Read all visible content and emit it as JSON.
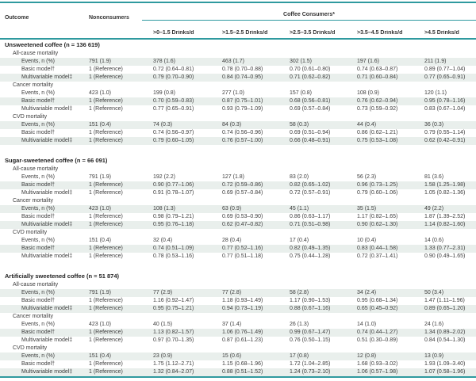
{
  "colors": {
    "accent_teal": "#2f9a9f",
    "row_stripe": "#e9efec"
  },
  "table": {
    "header": {
      "outcome": "Outcome",
      "nonconsumers": "Nonconsumers",
      "consumers_group": "Coffee Consumers*",
      "consumer_cols": [
        ">0–1.5 Drinks/d",
        ">1.5–2.5 Drinks/d",
        ">2.5–3.5 Drinks/d",
        ">3.5–4.5 Drinks/d",
        ">4.5 Drinks/d"
      ]
    },
    "sections": [
      {
        "title": "Unsweetened coffee (n = 136 619)",
        "groups": [
          {
            "name": "All-cause mortality",
            "rows": [
              {
                "label": "Events, n (%)",
                "cells": [
                  "791 (1.9)",
                  "378 (1.6)",
                  "463 (1.7)",
                  "302 (1.5)",
                  "197 (1.6)",
                  "211 (1.9)"
                ]
              },
              {
                "label": "Basic model†",
                "cells": [
                  "1 (Reference)",
                  "0.72 (0.64–0.81)",
                  "0.78 (0.70–0.88)",
                  "0.70 (0.61–0.80)",
                  "0.74 (0.63–0.87)",
                  "0.89 (0.77–1.04)"
                ]
              },
              {
                "label": "Multivariable model‡",
                "cells": [
                  "1 (Reference)",
                  "0.79 (0.70–0.90)",
                  "0.84 (0.74–0.95)",
                  "0.71 (0.62–0.82)",
                  "0.71 (0.60–0.84)",
                  "0.77 (0.65–0.91)"
                ]
              }
            ]
          },
          {
            "name": "Cancer mortality",
            "rows": [
              {
                "label": "Events, n (%)",
                "cells": [
                  "423 (1.0)",
                  "199 (0.8)",
                  "277 (1.0)",
                  "157 (0.8)",
                  "108 (0.9)",
                  "120 (1.1)"
                ]
              },
              {
                "label": "Basic model†",
                "cells": [
                  "1 (Reference)",
                  "0.70 (0.59–0.83)",
                  "0.87 (0.75–1.01)",
                  "0.68 (0.56–0.81)",
                  "0.76 (0.62–0.94)",
                  "0.95 (0.78–1.16)"
                ]
              },
              {
                "label": "Multivariable model‡",
                "cells": [
                  "1 (Reference)",
                  "0.77 (0.65–0.91)",
                  "0.93 (0.79–1.09)",
                  "0.69 (0.57–0.84)",
                  "0.73 (0.59–0.92)",
                  "0.83 (0.67–1.04)"
                ]
              }
            ]
          },
          {
            "name": "CVD mortality",
            "rows": [
              {
                "label": "Events, n (%)",
                "cells": [
                  "151 (0.4)",
                  "74 (0.3)",
                  "84 (0.3)",
                  "58 (0.3)",
                  "44 (0.4)",
                  "36 (0.3)"
                ]
              },
              {
                "label": "Basic model†",
                "cells": [
                  "1 (Reference)",
                  "0.74 (0.56–0.97)",
                  "0.74 (0.56–0.96)",
                  "0.69 (0.51–0.94)",
                  "0.86 (0.62–1.21)",
                  "0.79 (0.55–1.14)"
                ]
              },
              {
                "label": "Multivariable model‡",
                "cells": [
                  "1 (Reference)",
                  "0.79 (0.60–1.05)",
                  "0.76 (0.57–1.00)",
                  "0.66 (0.48–0.91)",
                  "0.75 (0.53–1.08)",
                  "0.62 (0.42–0.91)"
                ]
              }
            ]
          }
        ]
      },
      {
        "title": "Sugar-sweetened coffee (n = 66 091)",
        "groups": [
          {
            "name": "All-cause mortality",
            "rows": [
              {
                "label": "Events, n (%)",
                "cells": [
                  "791 (1.9)",
                  "192 (2.2)",
                  "127 (1.8)",
                  "83 (2.0)",
                  "56 (2.3)",
                  "81 (3.6)"
                ]
              },
              {
                "label": "Basic model†",
                "cells": [
                  "1 (Reference)",
                  "0.90 (0.77–1.06)",
                  "0.72 (0.59–0.86)",
                  "0.82 (0.65–1.02)",
                  "0.96 (0.73–1.25)",
                  "1.58 (1.25–1.98)"
                ]
              },
              {
                "label": "Multivariable model‡",
                "cells": [
                  "1 (Reference)",
                  "0.91 (0.78–1.07)",
                  "0.69 (0.57–0.84)",
                  "0.72 (0.57–0.91)",
                  "0.79 (0.60–1.06)",
                  "1.05 (0.82–1.36)"
                ]
              }
            ]
          },
          {
            "name": "Cancer mortality",
            "rows": [
              {
                "label": "Events, n (%)",
                "cells": [
                  "423 (1.0)",
                  "108 (1.3)",
                  "63 (0.9)",
                  "45 (1.1)",
                  "35 (1.5)",
                  "49 (2.2)"
                ]
              },
              {
                "label": "Basic model†",
                "cells": [
                  "1 (Reference)",
                  "0.98 (0.79–1.21)",
                  "0.69 (0.53–0.90)",
                  "0.86 (0.63–1.17)",
                  "1.17 (0.82–1.65)",
                  "1.87 (1.39–2.52)"
                ]
              },
              {
                "label": "Multivariable model‡",
                "cells": [
                  "1 (Reference)",
                  "0.95 (0.76–1.18)",
                  "0.62 (0.47–0.82)",
                  "0.71 (0.51–0.98)",
                  "0.90 (0.62–1.30)",
                  "1.14 (0.82–1.60)"
                ]
              }
            ]
          },
          {
            "name": "CVD mortality",
            "rows": [
              {
                "label": "Events, n (%)",
                "cells": [
                  "151 (0.4)",
                  "32 (0.4)",
                  "28 (0.4)",
                  "17 (0.4)",
                  "10 (0.4)",
                  "14 (0.6)"
                ]
              },
              {
                "label": "Basic model†",
                "cells": [
                  "1 (Reference)",
                  "0.74 (0.51–1.09)",
                  "0.77 (0.52–1.16)",
                  "0.82 (0.49–1.35)",
                  "0.83 (0.44–1.58)",
                  "1.33 (0.77–2.31)"
                ]
              },
              {
                "label": "Multivariable model‡",
                "cells": [
                  "1 (Reference)",
                  "0.78 (0.53–1.16)",
                  "0.77 (0.51–1.18)",
                  "0.75 (0.44–1.28)",
                  "0.72 (0.37–1.41)",
                  "0.90 (0.49–1.65)"
                ]
              }
            ]
          }
        ]
      },
      {
        "title": "Artificially sweetened coffee (n = 51 874)",
        "groups": [
          {
            "name": "All-cause mortality",
            "rows": [
              {
                "label": "Events, n (%)",
                "cells": [
                  "791 (1.9)",
                  "77 (2.9)",
                  "77 (2.8)",
                  "58 (2.8)",
                  "34 (2.4)",
                  "50 (3.4)"
                ]
              },
              {
                "label": "Basic model†",
                "cells": [
                  "1 (Reference)",
                  "1.16 (0.92–1.47)",
                  "1.18 (0.93–1.49)",
                  "1.17 (0.90–1.53)",
                  "0.95 (0.68–1.34)",
                  "1.47 (1.11–1.96)"
                ]
              },
              {
                "label": "Multivariable model‡",
                "cells": [
                  "1 (Reference)",
                  "0.95 (0.75–1.21)",
                  "0.94 (0.73–1.19)",
                  "0.88 (0.67–1.16)",
                  "0.65 (0.45–0.92)",
                  "0.89 (0.65–1.20)"
                ]
              }
            ]
          },
          {
            "name": "Cancer mortality",
            "rows": [
              {
                "label": "Events, n (%)",
                "cells": [
                  "423 (1.0)",
                  "40 (1.5)",
                  "37 (1.4)",
                  "26 (1.3)",
                  "14 (1.0)",
                  "24 (1.6)"
                ]
              },
              {
                "label": "Basic model†",
                "cells": [
                  "1 (Reference)",
                  "1.13 (0.82–1.57)",
                  "1.06 (0.76–1.49)",
                  "0.99 (0.67–1.47)",
                  "0.74 (0.44–1.27)",
                  "1.34 (0.89–2.02)"
                ]
              },
              {
                "label": "Multivariable model‡",
                "cells": [
                  "1 (Reference)",
                  "0.97 (0.70–1.35)",
                  "0.87 (0.61–1.23)",
                  "0.76 (0.50–1.15)",
                  "0.51 (0.30–0.89)",
                  "0.84 (0.54–1.30)"
                ]
              }
            ]
          },
          {
            "name": "CVD mortality",
            "rows": [
              {
                "label": "Events, n (%)",
                "cells": [
                  "151 (0.4)",
                  "23 (0.9)",
                  "15 (0.6)",
                  "17 (0.8)",
                  "12 (0.8)",
                  "13 (0.9)"
                ]
              },
              {
                "label": "Basic model†",
                "cells": [
                  "1 (Reference)",
                  "1.75 (1.12–2.71)",
                  "1.15 (0.68–1.96)",
                  "1.72 (1.04–2.85)",
                  "1.68 (0.93–3.02)",
                  "1.93 (1.09–3.40)"
                ]
              },
              {
                "label": "Multivariable model‡",
                "cells": [
                  "1 (Reference)",
                  "1.32 (0.84–2.07)",
                  "0.88 (0.51–1.52)",
                  "1.24 (0.73–2.10)",
                  "1.06 (0.57–1.98)",
                  "1.07 (0.58–1.96)"
                ]
              }
            ]
          }
        ]
      }
    ]
  }
}
